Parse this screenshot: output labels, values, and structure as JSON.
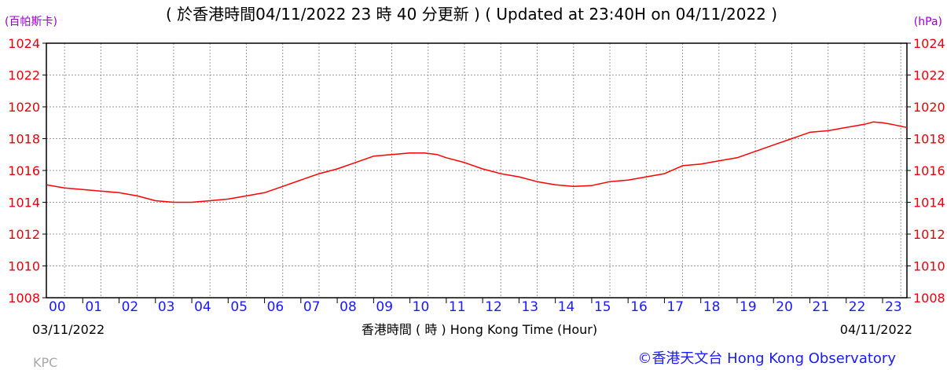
{
  "chart_data": {
    "type": "line",
    "title": "( 於香港時間04/11/2022 23 時 40 分更新 ) ( Updated at 23:40H on 04/11/2022 )",
    "ylabel_left": "(百帕斯卡)",
    "ylabel_right": "(hPa)",
    "xlabel": "香港時間 ( 時 ) Hong Kong Time (Hour)",
    "date_start": "03/11/2022",
    "date_end": "04/11/2022",
    "ylim": [
      1008,
      1024
    ],
    "yticks": [
      "1008",
      "1010",
      "1012",
      "1014",
      "1016",
      "1018",
      "1020",
      "1022",
      "1024"
    ],
    "xlim": [
      0,
      23.67
    ],
    "xticks": [
      "00",
      "01",
      "02",
      "03",
      "04",
      "05",
      "06",
      "07",
      "08",
      "09",
      "10",
      "11",
      "12",
      "13",
      "14",
      "15",
      "16",
      "17",
      "18",
      "19",
      "20",
      "21",
      "22",
      "23"
    ],
    "grid": true,
    "series": [
      {
        "color": "#ff0000",
        "x": [
          0,
          0.5,
          1,
          1.5,
          2,
          2.5,
          3,
          3.5,
          4,
          4.5,
          5,
          5.5,
          6,
          6.5,
          7,
          7.5,
          8,
          8.5,
          9,
          9.5,
          10,
          10.4,
          10.75,
          11,
          11.5,
          12,
          12.5,
          13,
          13.5,
          14,
          14.5,
          15,
          15.5,
          16,
          16.5,
          17,
          17.5,
          18,
          18.5,
          19,
          19.5,
          20,
          20.5,
          21,
          21.5,
          22,
          22.5,
          22.75,
          23,
          23.25,
          23.67
        ],
        "values": [
          1015.1,
          1014.9,
          1014.8,
          1014.7,
          1014.6,
          1014.4,
          1014.1,
          1014.0,
          1014.0,
          1014.1,
          1014.2,
          1014.4,
          1014.6,
          1015.0,
          1015.4,
          1015.8,
          1016.1,
          1016.5,
          1016.9,
          1017.0,
          1017.1,
          1017.1,
          1017.0,
          1016.8,
          1016.5,
          1016.1,
          1015.8,
          1015.6,
          1015.3,
          1015.1,
          1015.0,
          1015.05,
          1015.3,
          1015.4,
          1015.6,
          1015.8,
          1016.3,
          1016.4,
          1016.6,
          1016.8,
          1017.2,
          1017.6,
          1018.0,
          1018.4,
          1018.5,
          1018.7,
          1018.9,
          1019.05,
          1019.0,
          1018.9,
          1018.7
        ]
      }
    ]
  },
  "footer": {
    "credit": "©香港天文台 Hong Kong Observatory",
    "code": "KPC"
  }
}
